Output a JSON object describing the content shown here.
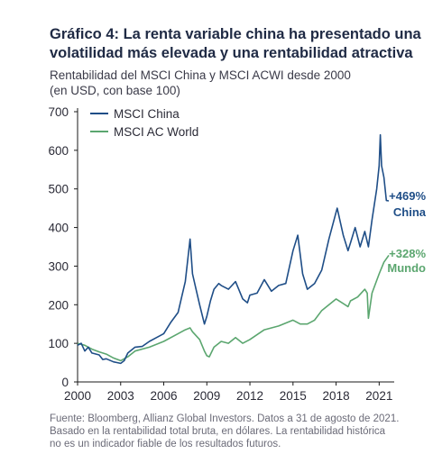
{
  "title": "Gráfico 4: La renta variable china ha presentado una volatilidad más elevada y una rentabilidad atractiva",
  "subtitle_line1": "Rentabilidad del MSCI China y MSCI ACWI desde 2000",
  "subtitle_line2": "(en USD, con base 100)",
  "source_line1": "Fuente: Bloomberg, Allianz Global Investors. Datos a 31 de agosto de 2021.",
  "source_line2": "Basado en la rentabilidad total bruta, en dólares. La rentabilidad histórica",
  "source_line3": "no es un indicador fiable de los resultados futuros.",
  "colors": {
    "china": "#1f4e87",
    "world": "#5ba66f",
    "axis": "#1a1a1a"
  },
  "chart_data": {
    "type": "line",
    "ylim": [
      0,
      700
    ],
    "xlim": [
      2000,
      2021.67
    ],
    "yticks": [
      0,
      100,
      200,
      300,
      400,
      500,
      600,
      700
    ],
    "xticks": [
      2000,
      2003,
      2006,
      2009,
      2012,
      2015,
      2018,
      2021
    ],
    "legend_position": "top-left",
    "grid": false,
    "series": [
      {
        "name": "MSCI China",
        "color": "#1f4e87",
        "x": [
          2000,
          2000.25,
          2000.5,
          2000.75,
          2001,
          2001.5,
          2001.75,
          2002,
          2002.5,
          2003,
          2003.25,
          2003.5,
          2004,
          2004.5,
          2005,
          2005.5,
          2006,
          2006.5,
          2007,
          2007.25,
          2007.5,
          2007.83,
          2008,
          2008.25,
          2008.5,
          2008.83,
          2009,
          2009.25,
          2009.5,
          2009.83,
          2010,
          2010.5,
          2011,
          2011.5,
          2011.83,
          2012,
          2012.5,
          2013,
          2013.5,
          2014,
          2014.5,
          2015,
          2015.33,
          2015.67,
          2016,
          2016.5,
          2017,
          2017.5,
          2018,
          2018.08,
          2018.5,
          2018.83,
          2019,
          2019.33,
          2019.67,
          2020,
          2020.25,
          2020.5,
          2020.83,
          2021,
          2021.08,
          2021.17,
          2021.33,
          2021.5,
          2021.67
        ],
        "values": [
          95,
          100,
          80,
          90,
          75,
          70,
          58,
          60,
          52,
          48,
          55,
          75,
          90,
          92,
          105,
          115,
          125,
          155,
          180,
          220,
          260,
          370,
          280,
          240,
          200,
          150,
          170,
          210,
          240,
          255,
          250,
          240,
          260,
          215,
          205,
          225,
          230,
          265,
          235,
          250,
          255,
          340,
          380,
          280,
          240,
          255,
          290,
          370,
          440,
          450,
          380,
          340,
          360,
          400,
          350,
          390,
          350,
          420,
          500,
          560,
          640,
          560,
          530,
          470,
          469
        ]
      },
      {
        "name": "MSCI AC World",
        "color": "#5ba66f",
        "x": [
          2000,
          2000.5,
          2001,
          2001.5,
          2002,
          2002.5,
          2003,
          2003.5,
          2004,
          2005,
          2006,
          2007,
          2007.5,
          2007.83,
          2008,
          2008.5,
          2008.83,
          2009,
          2009.17,
          2009.5,
          2010,
          2010.5,
          2011,
          2011.5,
          2012,
          2013,
          2014,
          2015,
          2015.5,
          2016,
          2016.5,
          2017,
          2018,
          2018.83,
          2019,
          2019.5,
          2020,
          2020.17,
          2020.25,
          2020.5,
          2021,
          2021.33,
          2021.67
        ],
        "values": [
          100,
          95,
          85,
          78,
          72,
          62,
          55,
          65,
          80,
          90,
          105,
          125,
          135,
          140,
          130,
          110,
          80,
          68,
          65,
          90,
          105,
          100,
          115,
          100,
          110,
          135,
          145,
          160,
          150,
          150,
          160,
          185,
          215,
          195,
          210,
          220,
          240,
          230,
          165,
          230,
          280,
          310,
          328
        ]
      }
    ],
    "annotations": [
      {
        "series": "MSCI China",
        "value": "+469%",
        "label": "China"
      },
      {
        "series": "MSCI AC World",
        "value": "+328%",
        "label": "Mundo"
      }
    ]
  }
}
